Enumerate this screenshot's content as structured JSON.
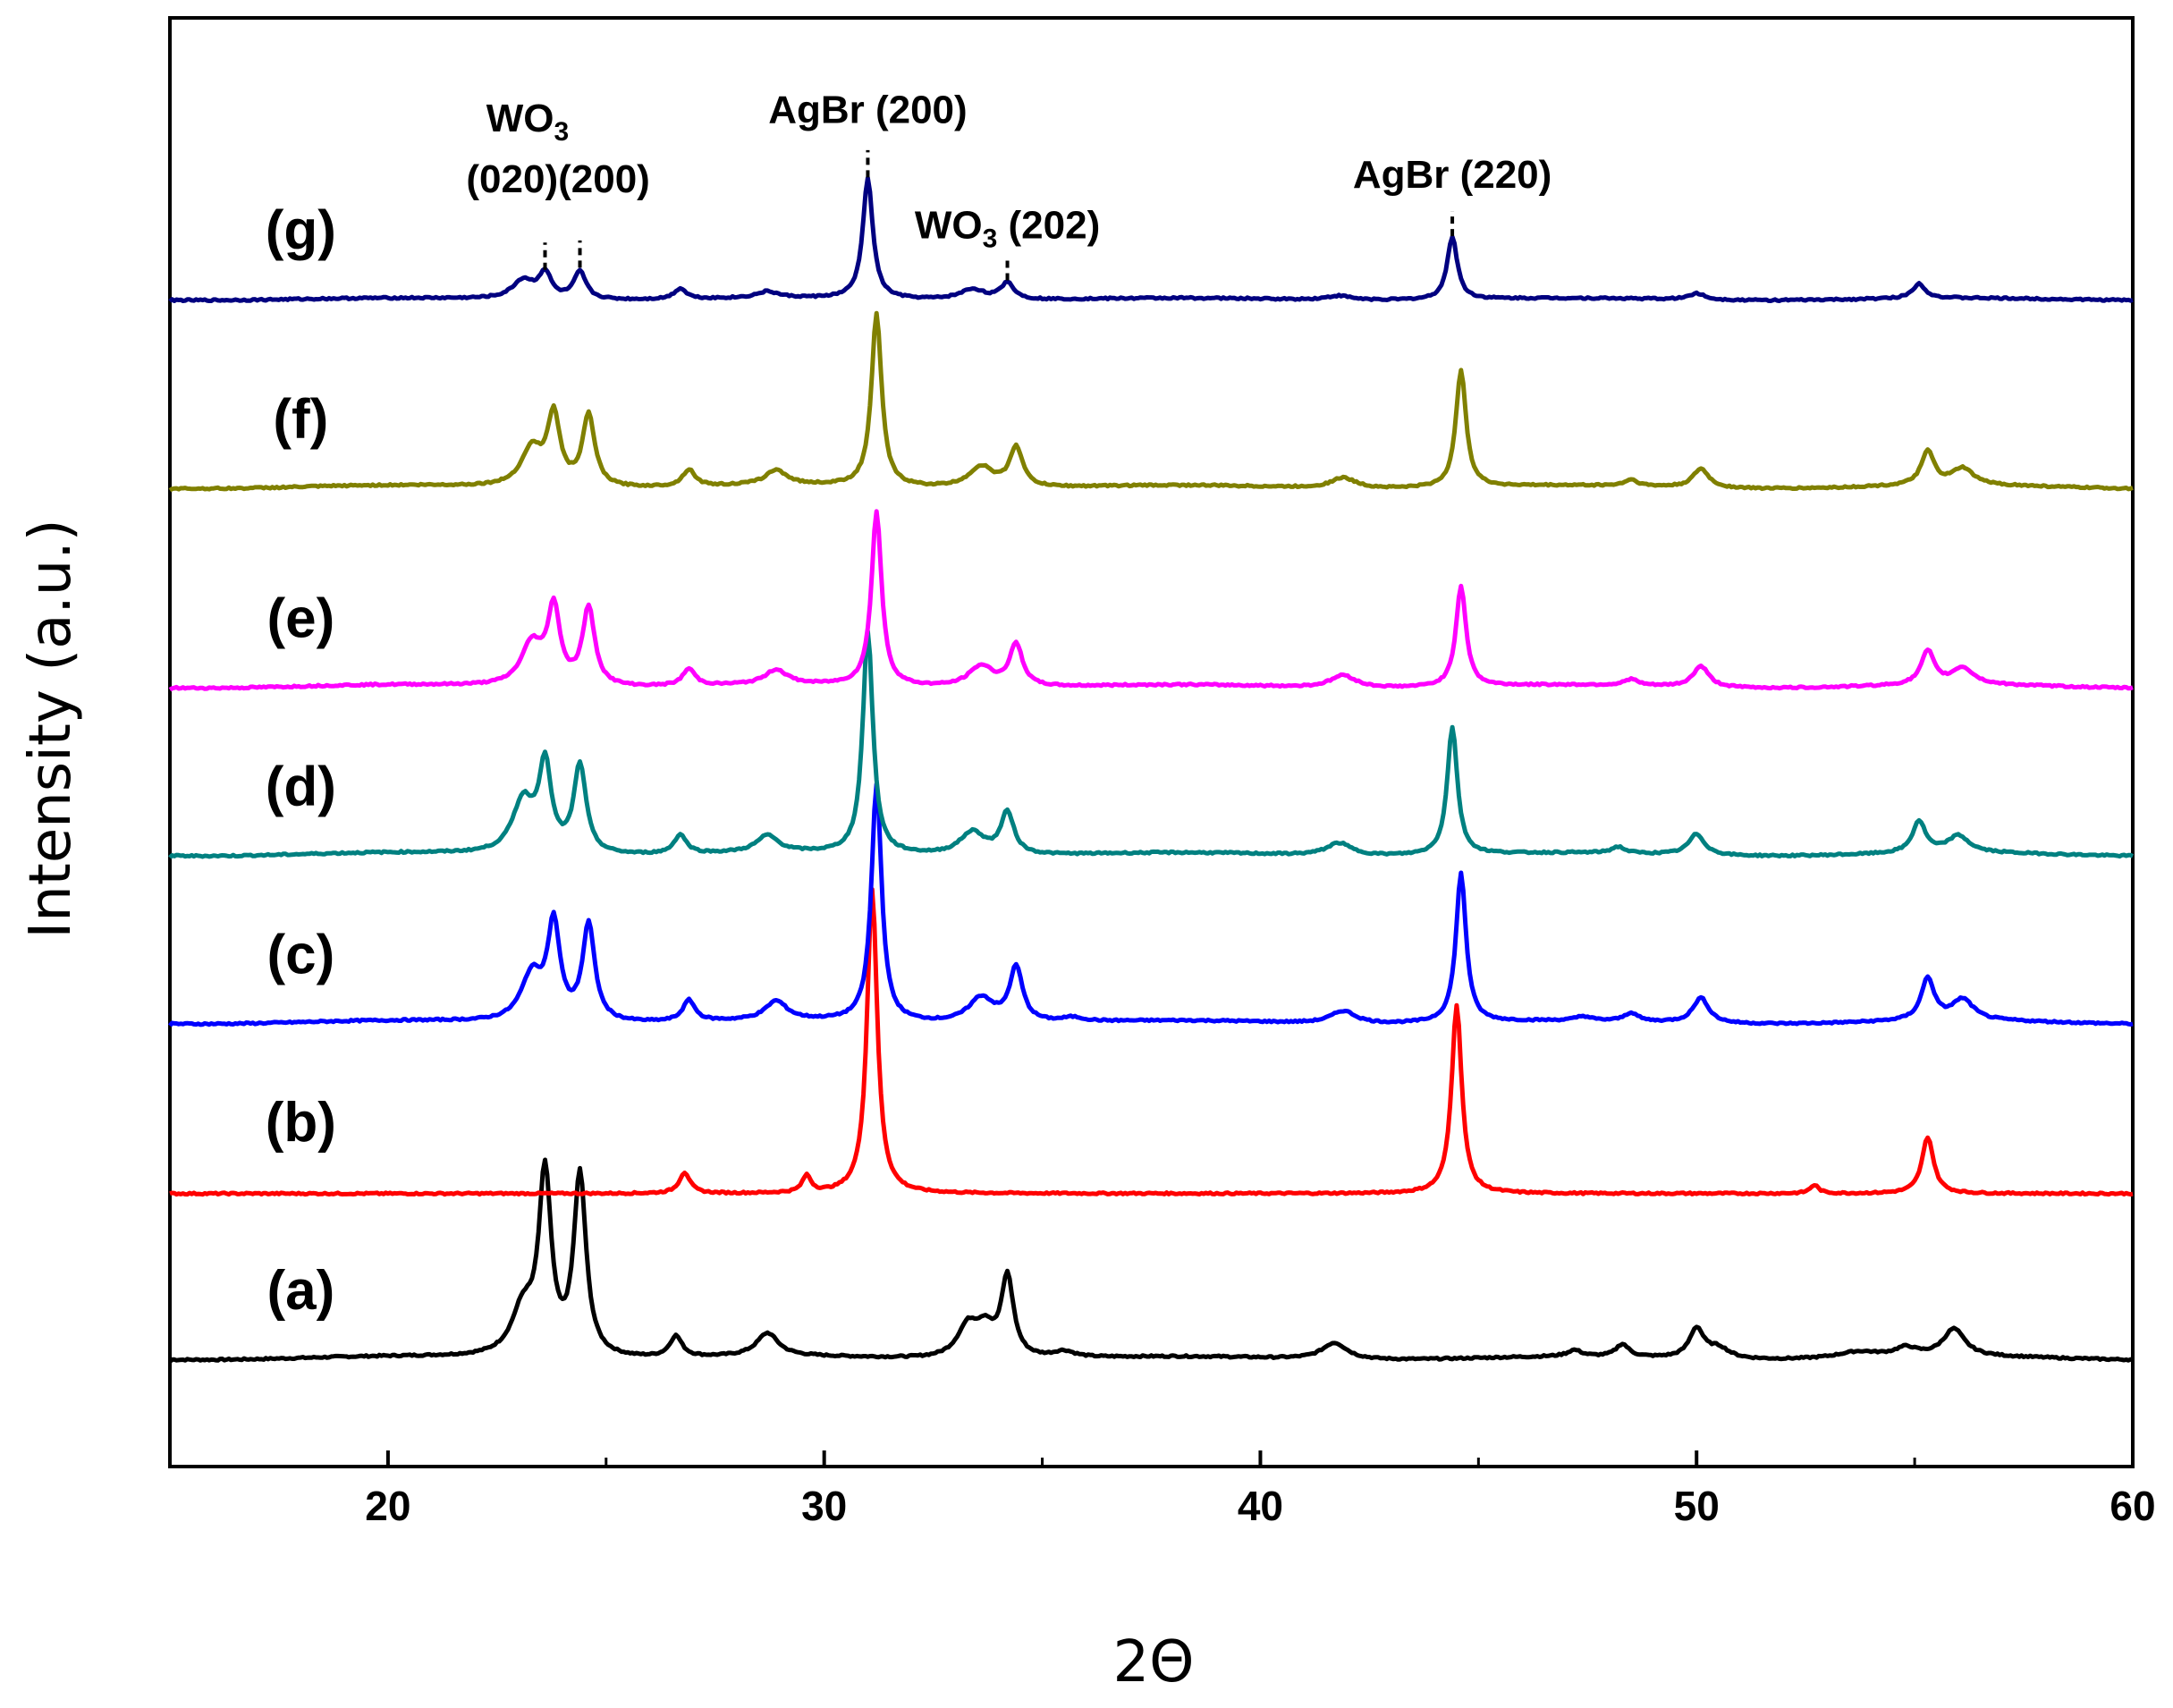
{
  "chart_data": {
    "type": "line",
    "title": "",
    "xlabel": "2Θ",
    "ylabel": "Intensity (a.u.)",
    "xlim": [
      15,
      60
    ],
    "xticks": [
      20,
      30,
      40,
      50,
      60
    ],
    "xtick_labels": [
      "20",
      "30",
      "40",
      "50",
      "60"
    ],
    "yticks_shown": false,
    "grid": false,
    "legend": "none",
    "series": [
      {
        "name": "(a)",
        "label": "(a)",
        "color": "#000000",
        "baseline": 0,
        "bg": 0.15,
        "peaks": [
          {
            "x": 23.1,
            "h": 2.2,
            "w": 0.32
          },
          {
            "x": 23.6,
            "h": 8.5,
            "w": 0.17
          },
          {
            "x": 24.4,
            "h": 8.6,
            "w": 0.17
          },
          {
            "x": 26.6,
            "h": 1.0,
            "w": 0.17
          },
          {
            "x": 28.7,
            "h": 1.1,
            "w": 0.3
          },
          {
            "x": 33.3,
            "h": 1.5,
            "w": 0.3
          },
          {
            "x": 33.7,
            "h": 1.2,
            "w": 0.25
          },
          {
            "x": 34.2,
            "h": 3.8,
            "w": 0.17
          },
          {
            "x": 35.5,
            "h": 0.3,
            "w": 0.3
          },
          {
            "x": 41.7,
            "h": 0.8,
            "w": 0.35
          },
          {
            "x": 47.2,
            "h": 0.3,
            "w": 0.2
          },
          {
            "x": 48.3,
            "h": 0.6,
            "w": 0.18
          },
          {
            "x": 50.0,
            "h": 1.4,
            "w": 0.2
          },
          {
            "x": 50.5,
            "h": 0.5,
            "w": 0.3
          },
          {
            "x": 53.7,
            "h": 0.3,
            "w": 0.6
          },
          {
            "x": 54.8,
            "h": 0.4,
            "w": 0.3
          },
          {
            "x": 55.9,
            "h": 1.3,
            "w": 0.3
          }
        ]
      },
      {
        "name": "(b)",
        "label": "(b)",
        "color": "#ff0000",
        "baseline": 8,
        "bg": 0.0,
        "peaks": [
          {
            "x": 26.8,
            "h": 1.0,
            "w": 0.15
          },
          {
            "x": 29.6,
            "h": 0.8,
            "w": 0.12
          },
          {
            "x": 31.1,
            "h": 14.5,
            "w": 0.14
          },
          {
            "x": 44.5,
            "h": 9.0,
            "w": 0.14
          },
          {
            "x": 52.7,
            "h": 0.4,
            "w": 0.12
          },
          {
            "x": 55.3,
            "h": 2.7,
            "w": 0.16
          }
        ]
      },
      {
        "name": "(c)",
        "label": "(c)",
        "color": "#0000ff",
        "baseline": 16,
        "bg": 0.15,
        "peaks": [
          {
            "x": 23.3,
            "h": 2.2,
            "w": 0.3
          },
          {
            "x": 23.8,
            "h": 4.5,
            "w": 0.17
          },
          {
            "x": 24.6,
            "h": 4.6,
            "w": 0.17
          },
          {
            "x": 26.9,
            "h": 1.0,
            "w": 0.17
          },
          {
            "x": 28.9,
            "h": 0.9,
            "w": 0.3
          },
          {
            "x": 31.2,
            "h": 11.3,
            "w": 0.14
          },
          {
            "x": 33.6,
            "h": 1.2,
            "w": 0.35
          },
          {
            "x": 34.4,
            "h": 2.6,
            "w": 0.18
          },
          {
            "x": 35.7,
            "h": 0.2,
            "w": 0.3
          },
          {
            "x": 41.9,
            "h": 0.6,
            "w": 0.35
          },
          {
            "x": 44.6,
            "h": 7.1,
            "w": 0.14
          },
          {
            "x": 47.4,
            "h": 0.2,
            "w": 0.2
          },
          {
            "x": 48.5,
            "h": 0.4,
            "w": 0.18
          },
          {
            "x": 50.1,
            "h": 1.2,
            "w": 0.22
          },
          {
            "x": 55.3,
            "h": 2.0,
            "w": 0.18
          },
          {
            "x": 56.1,
            "h": 1.0,
            "w": 0.3
          }
        ]
      },
      {
        "name": "(d)",
        "label": "(d)",
        "color": "#008080",
        "baseline": 24,
        "bg": 0.15,
        "peaks": [
          {
            "x": 23.1,
            "h": 2.5,
            "w": 0.3
          },
          {
            "x": 23.6,
            "h": 4.1,
            "w": 0.17
          },
          {
            "x": 24.4,
            "h": 4.2,
            "w": 0.17
          },
          {
            "x": 26.7,
            "h": 0.9,
            "w": 0.17
          },
          {
            "x": 28.7,
            "h": 0.8,
            "w": 0.3
          },
          {
            "x": 31.0,
            "h": 10.6,
            "w": 0.14
          },
          {
            "x": 33.4,
            "h": 1.1,
            "w": 0.35
          },
          {
            "x": 34.2,
            "h": 2.0,
            "w": 0.18
          },
          {
            "x": 41.8,
            "h": 0.6,
            "w": 0.35
          },
          {
            "x": 44.4,
            "h": 6.1,
            "w": 0.14
          },
          {
            "x": 48.2,
            "h": 0.3,
            "w": 0.18
          },
          {
            "x": 50.0,
            "h": 1.0,
            "w": 0.22
          },
          {
            "x": 55.1,
            "h": 1.5,
            "w": 0.18
          },
          {
            "x": 56.0,
            "h": 0.8,
            "w": 0.3
          }
        ]
      },
      {
        "name": "(e)",
        "label": "(e)",
        "color": "#ff00ff",
        "baseline": 32,
        "bg": 0.15,
        "peaks": [
          {
            "x": 23.3,
            "h": 2.0,
            "w": 0.3
          },
          {
            "x": 23.8,
            "h": 3.6,
            "w": 0.17
          },
          {
            "x": 24.6,
            "h": 3.7,
            "w": 0.17
          },
          {
            "x": 26.9,
            "h": 0.8,
            "w": 0.17
          },
          {
            "x": 28.9,
            "h": 0.7,
            "w": 0.3
          },
          {
            "x": 31.2,
            "h": 8.3,
            "w": 0.14
          },
          {
            "x": 33.6,
            "h": 1.0,
            "w": 0.35
          },
          {
            "x": 34.4,
            "h": 2.0,
            "w": 0.18
          },
          {
            "x": 41.9,
            "h": 0.6,
            "w": 0.35
          },
          {
            "x": 44.6,
            "h": 4.8,
            "w": 0.14
          },
          {
            "x": 48.5,
            "h": 0.3,
            "w": 0.18
          },
          {
            "x": 50.1,
            "h": 1.0,
            "w": 0.22
          },
          {
            "x": 55.3,
            "h": 1.6,
            "w": 0.18
          },
          {
            "x": 56.1,
            "h": 0.8,
            "w": 0.3
          }
        ]
      },
      {
        "name": "(f)",
        "label": "(f)",
        "color": "#808000",
        "baseline": 41.5,
        "bg": 0.15,
        "peaks": [
          {
            "x": 23.3,
            "h": 1.8,
            "w": 0.3
          },
          {
            "x": 23.8,
            "h": 3.3,
            "w": 0.17
          },
          {
            "x": 24.6,
            "h": 3.4,
            "w": 0.17
          },
          {
            "x": 26.9,
            "h": 0.8,
            "w": 0.17
          },
          {
            "x": 28.9,
            "h": 0.7,
            "w": 0.3
          },
          {
            "x": 31.2,
            "h": 8.2,
            "w": 0.14
          },
          {
            "x": 33.6,
            "h": 1.0,
            "w": 0.35
          },
          {
            "x": 34.4,
            "h": 1.9,
            "w": 0.18
          },
          {
            "x": 41.9,
            "h": 0.5,
            "w": 0.35
          },
          {
            "x": 44.6,
            "h": 5.6,
            "w": 0.14
          },
          {
            "x": 48.5,
            "h": 0.3,
            "w": 0.18
          },
          {
            "x": 50.1,
            "h": 0.9,
            "w": 0.22
          },
          {
            "x": 55.3,
            "h": 1.6,
            "w": 0.18
          },
          {
            "x": 56.1,
            "h": 0.8,
            "w": 0.3
          }
        ]
      },
      {
        "name": "(g)",
        "label": "(g)",
        "color": "#000080",
        "baseline": 50.5,
        "bg": 0.1,
        "peaks": [
          {
            "x": 23.1,
            "h": 0.9,
            "w": 0.3
          },
          {
            "x": 23.6,
            "h": 1.2,
            "w": 0.17
          },
          {
            "x": 24.4,
            "h": 1.3,
            "w": 0.17
          },
          {
            "x": 26.7,
            "h": 0.5,
            "w": 0.17
          },
          {
            "x": 28.7,
            "h": 0.3,
            "w": 0.3
          },
          {
            "x": 31.0,
            "h": 5.7,
            "w": 0.14
          },
          {
            "x": 33.4,
            "h": 0.5,
            "w": 0.35
          },
          {
            "x": 34.2,
            "h": 0.8,
            "w": 0.18
          },
          {
            "x": 41.8,
            "h": 0.2,
            "w": 0.35
          },
          {
            "x": 44.4,
            "h": 3.0,
            "w": 0.14
          },
          {
            "x": 50.0,
            "h": 0.3,
            "w": 0.22
          },
          {
            "x": 55.1,
            "h": 0.7,
            "w": 0.18
          }
        ]
      }
    ],
    "annotations": [
      {
        "name": "wo3-020-label",
        "text": "WO",
        "sub": "3",
        "x": 23.2,
        "y": 58.6,
        "anchor": "middle"
      },
      {
        "name": "wo3-020-200-label",
        "text": "(020)(200)",
        "x": 23.9,
        "y": 55.7,
        "anchor": "middle"
      },
      {
        "name": "agbr-200-label",
        "text": "AgBr (200)",
        "x": 31.0,
        "y": 59.0,
        "anchor": "middle"
      },
      {
        "name": "wo3-202-label",
        "text": "WO",
        "sub": "3",
        "suffix": " (202)",
        "x": 34.2,
        "y": 53.5,
        "anchor": "middle"
      },
      {
        "name": "agbr-220-label",
        "text": "AgBr (220)",
        "x": 44.4,
        "y": 55.9,
        "anchor": "middle"
      }
    ],
    "annotation_ticks": [
      {
        "name": "tick-wo3-020",
        "x": 23.6,
        "y0": 52.0,
        "y1": 53.3
      },
      {
        "name": "tick-wo3-200",
        "x": 24.4,
        "y0": 52.1,
        "y1": 53.4
      },
      {
        "name": "tick-agbr-200",
        "x": 31.0,
        "y0": 56.4,
        "y1": 57.7
      },
      {
        "name": "tick-wo3-202",
        "x": 34.2,
        "y0": 51.5,
        "y1": 52.6
      },
      {
        "name": "tick-agbr-220",
        "x": 44.4,
        "y0": 53.6,
        "y1": 54.8
      }
    ]
  }
}
